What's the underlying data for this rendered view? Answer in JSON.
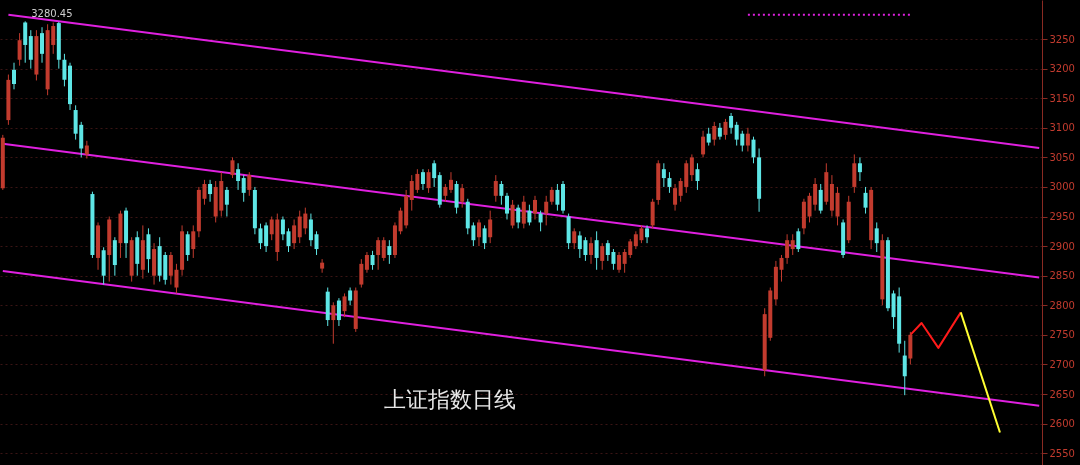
{
  "chart_data": {
    "type": "candlestick",
    "categories": [
      null,
      null,
      null,
      null,
      null,
      null,
      null,
      null,
      null,
      null,
      null,
      null,
      null,
      null,
      null,
      null,
      null,
      null,
      null,
      null,
      null,
      null,
      null,
      null,
      null,
      null,
      null,
      null,
      null,
      null,
      null,
      null,
      null,
      null,
      null,
      null,
      null,
      null,
      null,
      null,
      null,
      null,
      null,
      null,
      null,
      null,
      null,
      null,
      null,
      null,
      null,
      null,
      null,
      null,
      null,
      null,
      null,
      null,
      null,
      null,
      null,
      null,
      null,
      null,
      null,
      null,
      null,
      null,
      null,
      null,
      null,
      null,
      null,
      null,
      null,
      null,
      null,
      null,
      null,
      null,
      null,
      null,
      null,
      null,
      null,
      null,
      null,
      null,
      null,
      null,
      null,
      null,
      null,
      null,
      null,
      null,
      null,
      null,
      null,
      null,
      null,
      null,
      null,
      null,
      null,
      null,
      null,
      null,
      null,
      null,
      null,
      null,
      null,
      null,
      null,
      null,
      null,
      null,
      null,
      null,
      null,
      null,
      null,
      null,
      null,
      null,
      null,
      null,
      null,
      null,
      null,
      null,
      null,
      null,
      null,
      null,
      null,
      null,
      null,
      null,
      null,
      null,
      null,
      null,
      null,
      null,
      null,
      null,
      null,
      null,
      null,
      null,
      null,
      null,
      null,
      null,
      null,
      null,
      null,
      null,
      null,
      null,
      null,
      null,
      null,
      null,
      null,
      null,
      null,
      null,
      null,
      null,
      null,
      null,
      null,
      null,
      null,
      null,
      null,
      null,
      null,
      null,
      null,
      null,
      null,
      null
    ],
    "ohlc": [
      [
        2998,
        3088,
        2995,
        3083
      ],
      [
        3113,
        3190,
        3105,
        3181
      ],
      [
        3198,
        3210,
        3165,
        3174
      ],
      [
        3215,
        3260,
        3205,
        3248
      ],
      [
        3278,
        3280,
        3210,
        3240
      ],
      [
        3255,
        3265,
        3200,
        3215
      ],
      [
        3190,
        3265,
        3180,
        3255
      ],
      [
        3260,
        3270,
        3210,
        3225
      ],
      [
        3165,
        3275,
        3155,
        3265
      ],
      [
        3240,
        3278,
        3225,
        3272
      ],
      [
        3277,
        3279,
        3200,
        3215
      ],
      [
        3215,
        3225,
        3170,
        3181
      ],
      [
        3205,
        3210,
        3130,
        3140
      ],
      [
        3130,
        3138,
        3080,
        3090
      ],
      [
        3105,
        3110,
        3050,
        3065
      ],
      [
        3055,
        3078,
        3048,
        3070
      ],
      [
        2988,
        2992,
        2880,
        2885
      ],
      [
        2880,
        2940,
        2860,
        2935
      ],
      [
        2893,
        2898,
        2835,
        2850
      ],
      [
        2885,
        2950,
        2840,
        2945
      ],
      [
        2910,
        2915,
        2850,
        2868
      ],
      [
        2905,
        2960,
        2880,
        2955
      ],
      [
        2960,
        2965,
        2880,
        2905
      ],
      [
        2850,
        2915,
        2840,
        2910
      ],
      [
        2915,
        2925,
        2850,
        2870
      ],
      [
        2860,
        2935,
        2845,
        2910
      ],
      [
        2920,
        2930,
        2855,
        2878
      ],
      [
        2850,
        2905,
        2835,
        2895
      ],
      [
        2900,
        2915,
        2840,
        2850
      ],
      [
        2885,
        2890,
        2835,
        2843
      ],
      [
        2850,
        2890,
        2835,
        2885
      ],
      [
        2830,
        2870,
        2820,
        2860
      ],
      [
        2860,
        2935,
        2850,
        2925
      ],
      [
        2920,
        2925,
        2875,
        2885
      ],
      [
        2895,
        2935,
        2880,
        2925
      ],
      [
        2925,
        3000,
        2915,
        2995
      ],
      [
        2980,
        3012,
        2970,
        3005
      ],
      [
        3005,
        3012,
        2975,
        2988
      ],
      [
        2950,
        3010,
        2940,
        3000
      ],
      [
        2960,
        3025,
        2950,
        3010
      ],
      [
        2995,
        3000,
        2950,
        2970
      ],
      [
        3020,
        3050,
        3015,
        3045
      ],
      [
        3030,
        3040,
        2995,
        3010
      ],
      [
        3015,
        3020,
        2975,
        2990
      ],
      [
        2995,
        3025,
        2985,
        3020
      ],
      [
        2995,
        3000,
        2920,
        2930
      ],
      [
        2930,
        2938,
        2895,
        2905
      ],
      [
        2935,
        2940,
        2890,
        2900
      ],
      [
        2920,
        2950,
        2910,
        2945
      ],
      [
        2890,
        2955,
        2875,
        2945
      ],
      [
        2945,
        2950,
        2910,
        2920
      ],
      [
        2925,
        2930,
        2890,
        2900
      ],
      [
        2905,
        2945,
        2895,
        2935
      ],
      [
        2915,
        2960,
        2905,
        2950
      ],
      [
        2930,
        2965,
        2920,
        2955
      ],
      [
        2945,
        2955,
        2900,
        2910
      ],
      [
        2920,
        2925,
        2885,
        2895
      ],
      [
        2862,
        2878,
        2855,
        2872
      ],
      [
        2823,
        2830,
        2765,
        2775
      ],
      [
        2775,
        2805,
        2735,
        2800
      ],
      [
        2808,
        2812,
        2765,
        2775
      ],
      [
        2790,
        2820,
        2780,
        2815
      ],
      [
        2825,
        2830,
        2800,
        2808
      ],
      [
        2760,
        2830,
        2755,
        2825
      ],
      [
        2835,
        2878,
        2830,
        2870
      ],
      [
        2860,
        2890,
        2855,
        2885
      ],
      [
        2885,
        2892,
        2860,
        2868
      ],
      [
        2885,
        2915,
        2860,
        2910
      ],
      [
        2880,
        2915,
        2875,
        2910
      ],
      [
        2900,
        2910,
        2870,
        2885
      ],
      [
        2885,
        2940,
        2880,
        2935
      ],
      [
        2925,
        2965,
        2920,
        2960
      ],
      [
        2935,
        2995,
        2930,
        2985
      ],
      [
        2978,
        3020,
        2960,
        3010
      ],
      [
        2995,
        3030,
        2990,
        3022
      ],
      [
        3025,
        3030,
        2995,
        3005
      ],
      [
        2998,
        3030,
        2990,
        3025
      ],
      [
        3040,
        3045,
        3000,
        3015
      ],
      [
        3020,
        3025,
        2965,
        2970
      ],
      [
        2985,
        3005,
        2975,
        3000
      ],
      [
        2995,
        3025,
        2990,
        3012
      ],
      [
        3005,
        3010,
        2955,
        2965
      ],
      [
        2975,
        3005,
        2965,
        2998
      ],
      [
        2975,
        2980,
        2920,
        2930
      ],
      [
        2935,
        2940,
        2900,
        2910
      ],
      [
        2915,
        2945,
        2900,
        2940
      ],
      [
        2930,
        2935,
        2895,
        2905
      ],
      [
        2915,
        2960,
        2905,
        2945
      ],
      [
        2985,
        3020,
        2975,
        3010
      ],
      [
        3005,
        3010,
        2970,
        2985
      ],
      [
        2985,
        2990,
        2945,
        2955
      ],
      [
        2935,
        2978,
        2930,
        2970
      ],
      [
        2965,
        2970,
        2930,
        2940
      ],
      [
        2938,
        2985,
        2930,
        2975
      ],
      [
        2960,
        2970,
        2935,
        2940
      ],
      [
        2955,
        2985,
        2945,
        2978
      ],
      [
        2955,
        2960,
        2925,
        2940
      ],
      [
        2955,
        2985,
        2935,
        2975
      ],
      [
        2975,
        3000,
        2970,
        2995
      ],
      [
        2995,
        3005,
        2960,
        2970
      ],
      [
        3005,
        3010,
        2955,
        2960
      ],
      [
        2950,
        2955,
        2895,
        2905
      ],
      [
        2905,
        2930,
        2895,
        2925
      ],
      [
        2918,
        2925,
        2880,
        2895
      ],
      [
        2910,
        2915,
        2875,
        2885
      ],
      [
        2885,
        2915,
        2870,
        2905
      ],
      [
        2910,
        2925,
        2860,
        2880
      ],
      [
        2875,
        2905,
        2860,
        2900
      ],
      [
        2905,
        2910,
        2875,
        2885
      ],
      [
        2890,
        2895,
        2860,
        2870
      ],
      [
        2860,
        2890,
        2855,
        2885
      ],
      [
        2870,
        2895,
        2855,
        2890
      ],
      [
        2885,
        2912,
        2880,
        2908
      ],
      [
        2900,
        2925,
        2895,
        2920
      ],
      [
        2910,
        2935,
        2905,
        2930
      ],
      [
        2930,
        2935,
        2905,
        2915
      ],
      [
        2935,
        2980,
        2930,
        2975
      ],
      [
        2978,
        3045,
        2970,
        3040
      ],
      [
        3030,
        3040,
        3000,
        3015
      ],
      [
        3015,
        3025,
        2990,
        3000
      ],
      [
        2970,
        3005,
        2960,
        2998
      ],
      [
        2985,
        3015,
        2975,
        3010
      ],
      [
        3000,
        3045,
        2990,
        3040
      ],
      [
        3020,
        3055,
        3010,
        3050
      ],
      [
        3030,
        3040,
        2995,
        3010
      ],
      [
        3055,
        3095,
        3050,
        3085
      ],
      [
        3090,
        3100,
        3070,
        3075
      ],
      [
        3080,
        3110,
        3070,
        3103
      ],
      [
        3100,
        3108,
        3080,
        3085
      ],
      [
        3088,
        3115,
        3080,
        3110
      ],
      [
        3120,
        3125,
        3090,
        3100
      ],
      [
        3105,
        3110,
        3070,
        3080
      ],
      [
        3090,
        3095,
        3060,
        3070
      ],
      [
        3070,
        3100,
        3060,
        3090
      ],
      [
        3080,
        3085,
        3040,
        3050
      ],
      [
        3050,
        3065,
        2958,
        2980
      ],
      [
        2690,
        2795,
        2680,
        2785
      ],
      [
        2745,
        2830,
        2740,
        2825
      ],
      [
        2810,
        2875,
        2800,
        2865
      ],
      [
        2860,
        2885,
        2840,
        2880
      ],
      [
        2880,
        2920,
        2870,
        2910
      ],
      [
        2895,
        2920,
        2885,
        2910
      ],
      [
        2925,
        2930,
        2890,
        2895
      ],
      [
        2930,
        2980,
        2920,
        2975
      ],
      [
        2950,
        2990,
        2940,
        2985
      ],
      [
        2970,
        3015,
        2960,
        3005
      ],
      [
        2995,
        3005,
        2955,
        2960
      ],
      [
        2975,
        3040,
        2970,
        3025
      ],
      [
        2960,
        3020,
        2950,
        3005
      ],
      [
        2950,
        3000,
        2935,
        2990
      ],
      [
        2940,
        2945,
        2880,
        2885
      ],
      [
        2910,
        2985,
        2905,
        2975
      ],
      [
        3000,
        3055,
        2990,
        3040
      ],
      [
        3040,
        3050,
        3010,
        3025
      ],
      [
        2990,
        3000,
        2955,
        2965
      ],
      [
        2910,
        3000,
        2895,
        2995
      ],
      [
        2930,
        2940,
        2890,
        2905
      ],
      [
        2810,
        2920,
        2800,
        2910
      ],
      [
        2910,
        2915,
        2790,
        2795
      ],
      [
        2820,
        2825,
        2760,
        2780
      ],
      [
        2815,
        2830,
        2720,
        2735
      ],
      [
        2715,
        2740,
        2648,
        2680
      ],
      [
        2710,
        2755,
        2700,
        2750
      ],
      null,
      null,
      null,
      null,
      null,
      null,
      null,
      null,
      null,
      null,
      null,
      null,
      null,
      null,
      null,
      null,
      null,
      null,
      null,
      null,
      null,
      null,
      null
    ],
    "colors": [
      "#c23b2e",
      "#c23b2e",
      "#5ee6e6",
      "#c23b2e",
      "#5ee6e6",
      "#5ee6e6",
      "#c23b2e",
      "#5ee6e6",
      "#c23b2e",
      "#c23b2e",
      "#5ee6e6",
      "#5ee6e6",
      "#5ee6e6",
      "#5ee6e6",
      "#5ee6e6",
      "#c23b2e",
      "#5ee6e6",
      "#c23b2e",
      "#5ee6e6",
      "#c23b2e",
      "#5ee6e6",
      "#c23b2e",
      "#5ee6e6",
      "#c23b2e",
      "#5ee6e6",
      "#c23b2e",
      "#5ee6e6",
      "#c23b2e",
      "#5ee6e6",
      "#5ee6e6",
      "#c23b2e",
      "#c23b2e",
      "#c23b2e",
      "#5ee6e6",
      "#c23b2e",
      "#c23b2e",
      "#c23b2e",
      "#5ee6e6",
      "#c23b2e",
      "#c23b2e",
      "#5ee6e6",
      "#c23b2e",
      "#5ee6e6",
      "#5ee6e6",
      "#c23b2e",
      "#5ee6e6",
      "#5ee6e6",
      "#5ee6e6",
      "#c23b2e",
      "#c23b2e",
      "#5ee6e6",
      "#5ee6e6",
      "#c23b2e",
      "#c23b2e",
      "#c23b2e",
      "#5ee6e6",
      "#5ee6e6",
      "#c23b2e",
      "#5ee6e6",
      "#c23b2e",
      "#5ee6e6",
      "#c23b2e",
      "#5ee6e6",
      "#c23b2e",
      "#c23b2e",
      "#c23b2e",
      "#5ee6e6",
      "#c23b2e",
      "#c23b2e",
      "#5ee6e6",
      "#c23b2e",
      "#c23b2e",
      "#c23b2e",
      "#c23b2e",
      "#c23b2e",
      "#5ee6e6",
      "#c23b2e",
      "#5ee6e6",
      "#5ee6e6",
      "#c23b2e",
      "#c23b2e",
      "#5ee6e6",
      "#c23b2e",
      "#5ee6e6",
      "#5ee6e6",
      "#c23b2e",
      "#5ee6e6",
      "#c23b2e",
      "#c23b2e",
      "#5ee6e6",
      "#5ee6e6",
      "#c23b2e",
      "#5ee6e6",
      "#c23b2e",
      "#5ee6e6",
      "#c23b2e",
      "#5ee6e6",
      "#c23b2e",
      "#c23b2e",
      "#5ee6e6",
      "#5ee6e6",
      "#5ee6e6",
      "#c23b2e",
      "#5ee6e6",
      "#5ee6e6",
      "#c23b2e",
      "#5ee6e6",
      "#c23b2e",
      "#5ee6e6",
      "#5ee6e6",
      "#c23b2e",
      "#c23b2e",
      "#c23b2e",
      "#c23b2e",
      "#c23b2e",
      "#5ee6e6",
      "#c23b2e",
      "#c23b2e",
      "#5ee6e6",
      "#5ee6e6",
      "#c23b2e",
      "#c23b2e",
      "#c23b2e",
      "#c23b2e",
      "#5ee6e6",
      "#c23b2e",
      "#5ee6e6",
      "#c23b2e",
      "#5ee6e6",
      "#c23b2e",
      "#5ee6e6",
      "#5ee6e6",
      "#5ee6e6",
      "#c23b2e",
      "#5ee6e6",
      "#5ee6e6",
      "#c23b2e",
      "#c23b2e",
      "#c23b2e",
      "#c23b2e",
      "#c23b2e",
      "#c23b2e",
      "#5ee6e6",
      "#c23b2e",
      "#c23b2e",
      "#c23b2e",
      "#5ee6e6",
      "#c23b2e",
      "#c23b2e",
      "#c23b2e",
      "#5ee6e6",
      "#c23b2e",
      "#c23b2e",
      "#5ee6e6",
      "#5ee6e6",
      "#c23b2e",
      "#5ee6e6",
      "#c23b2e",
      "#5ee6e6",
      "#5ee6e6",
      "#5ee6e6",
      "#5ee6e6",
      "#c23b2e",
      null,
      null,
      null,
      null,
      null,
      null,
      null,
      null,
      null,
      null,
      null,
      null,
      null,
      null,
      null,
      null,
      null,
      null,
      null,
      null,
      null,
      null,
      null
    ],
    "series": [
      {
        "type": "line",
        "color": "#e020e0",
        "line_style": "solid",
        "values": [
          null,
          3291,
          null,
          null,
          null,
          null,
          null,
          null,
          null,
          null,
          null,
          null,
          null,
          null,
          null,
          null,
          null,
          null,
          null,
          null,
          null,
          null,
          null,
          null,
          null,
          null,
          null,
          null,
          null,
          null,
          null,
          null,
          null,
          null,
          null,
          null,
          null,
          null,
          null,
          null,
          null,
          null,
          null,
          null,
          null,
          null,
          null,
          null,
          null,
          null,
          null,
          null,
          null,
          null,
          null,
          null,
          null,
          null,
          null,
          null,
          null,
          null,
          null,
          null,
          null,
          null,
          null,
          null,
          null,
          null,
          null,
          null,
          null,
          null,
          null,
          null,
          null,
          null,
          null,
          null,
          null,
          null,
          null,
          null,
          null,
          null,
          null,
          null,
          null,
          null,
          null,
          null,
          null,
          null,
          null,
          null,
          null,
          null,
          null,
          null,
          null,
          null,
          null,
          null,
          null,
          null,
          null,
          null,
          null,
          null,
          null,
          null,
          null,
          null,
          null,
          null,
          null,
          null,
          null,
          null,
          null,
          null,
          null,
          null,
          null,
          null,
          null,
          null,
          null,
          null,
          null,
          null,
          null,
          null,
          null,
          null,
          null,
          null,
          null,
          null,
          null,
          null,
          null,
          null,
          null,
          null,
          null,
          null,
          null,
          null,
          null,
          null,
          null,
          null,
          null,
          null,
          null,
          null,
          null,
          null,
          null,
          null,
          null,
          null,
          null,
          null,
          null,
          null,
          null,
          null,
          null,
          null,
          null,
          null,
          null,
          null,
          null,
          null,
          null,
          null,
          null,
          null,
          null,
          null,
          null,
          3066
        ]
      },
      {
        "type": "line",
        "color": "#e020e0",
        "line_style": "solid",
        "values": [
          3073,
          null,
          null,
          null,
          null,
          null,
          null,
          null,
          null,
          null,
          null,
          null,
          null,
          null,
          null,
          null,
          null,
          null,
          null,
          null,
          null,
          null,
          null,
          null,
          null,
          null,
          null,
          null,
          null,
          null,
          null,
          null,
          null,
          null,
          null,
          null,
          null,
          null,
          null,
          null,
          null,
          null,
          null,
          null,
          null,
          null,
          null,
          null,
          null,
          null,
          null,
          null,
          null,
          null,
          null,
          null,
          null,
          null,
          null,
          null,
          null,
          null,
          null,
          null,
          null,
          null,
          null,
          null,
          null,
          null,
          null,
          null,
          null,
          null,
          null,
          null,
          null,
          null,
          null,
          null,
          null,
          null,
          null,
          null,
          null,
          null,
          null,
          null,
          null,
          null,
          null,
          null,
          null,
          null,
          null,
          null,
          null,
          null,
          null,
          null,
          null,
          null,
          null,
          null,
          null,
          null,
          null,
          null,
          null,
          null,
          null,
          null,
          null,
          null,
          null,
          null,
          null,
          null,
          null,
          null,
          null,
          null,
          null,
          null,
          null,
          null,
          null,
          null,
          null,
          null,
          null,
          null,
          null,
          null,
          null,
          null,
          null,
          null,
          null,
          null,
          null,
          null,
          null,
          null,
          null,
          null,
          null,
          null,
          null,
          null,
          null,
          null,
          null,
          null,
          null,
          null,
          null,
          null,
          null,
          null,
          null,
          null,
          null,
          null,
          null,
          null,
          null,
          null,
          null,
          null,
          null,
          null,
          null,
          null,
          null,
          null,
          null,
          null,
          null,
          null,
          null,
          null,
          null,
          null,
          null,
          2847
        ]
      },
      {
        "type": "line",
        "color": "#e020e0",
        "line_style": "solid",
        "values": [
          2858,
          null,
          null,
          null,
          null,
          null,
          null,
          null,
          null,
          null,
          null,
          null,
          null,
          null,
          null,
          null,
          null,
          null,
          null,
          null,
          null,
          null,
          null,
          null,
          null,
          null,
          null,
          null,
          null,
          null,
          null,
          null,
          null,
          null,
          null,
          null,
          null,
          null,
          null,
          null,
          null,
          null,
          null,
          null,
          null,
          null,
          null,
          null,
          null,
          null,
          null,
          null,
          null,
          null,
          null,
          null,
          null,
          null,
          null,
          null,
          null,
          null,
          null,
          null,
          null,
          null,
          null,
          null,
          null,
          null,
          null,
          null,
          null,
          null,
          null,
          null,
          null,
          null,
          null,
          null,
          null,
          null,
          null,
          null,
          null,
          null,
          null,
          null,
          null,
          null,
          null,
          null,
          null,
          null,
          null,
          null,
          null,
          null,
          null,
          null,
          null,
          null,
          null,
          null,
          null,
          null,
          null,
          null,
          null,
          null,
          null,
          null,
          null,
          null,
          null,
          null,
          null,
          null,
          null,
          null,
          null,
          null,
          null,
          null,
          null,
          null,
          null,
          null,
          null,
          null,
          null,
          null,
          null,
          null,
          null,
          null,
          null,
          null,
          null,
          null,
          null,
          null,
          null,
          null,
          null,
          null,
          null,
          null,
          null,
          null,
          null,
          null,
          null,
          null,
          null,
          null,
          null,
          null,
          null,
          null,
          null,
          null,
          null,
          null,
          null,
          null,
          null,
          null,
          null,
          null,
          null,
          null,
          null,
          null,
          null,
          null,
          null,
          null,
          null,
          null,
          null,
          null,
          null,
          null,
          null,
          2630
        ]
      },
      {
        "type": "line",
        "color": "#e020e0",
        "line_style": "dotted",
        "values": [
          null,
          null,
          null,
          null,
          null,
          null,
          null,
          null,
          null,
          null,
          null,
          null,
          null,
          null,
          null,
          null,
          null,
          null,
          null,
          null,
          null,
          null,
          null,
          null,
          null,
          null,
          null,
          null,
          null,
          null,
          null,
          null,
          null,
          null,
          null,
          null,
          null,
          null,
          null,
          null,
          null,
          null,
          null,
          null,
          null,
          null,
          null,
          null,
          null,
          null,
          null,
          null,
          null,
          null,
          null,
          null,
          null,
          null,
          null,
          null,
          null,
          null,
          null,
          null,
          null,
          null,
          null,
          null,
          null,
          null,
          null,
          null,
          null,
          null,
          null,
          null,
          null,
          null,
          null,
          null,
          null,
          null,
          null,
          null,
          null,
          null,
          null,
          null,
          null,
          null,
          null,
          null,
          null,
          null,
          null,
          null,
          null,
          null,
          null,
          null,
          null,
          null,
          null,
          null,
          null,
          null,
          null,
          null,
          null,
          null,
          null,
          null,
          null,
          null,
          null,
          null,
          null,
          null,
          null,
          null,
          null,
          null,
          null,
          null,
          null,
          null,
          null,
          null,
          null,
          null,
          null,
          null,
          null,
          3291,
          null,
          null,
          null,
          null,
          null,
          null,
          null,
          null,
          null,
          null,
          null,
          null,
          null,
          null,
          null,
          null,
          null,
          null,
          null,
          null,
          null,
          null,
          null,
          null,
          null,
          null,
          null,
          null,
          3291,
          null,
          null,
          null,
          null,
          null,
          null,
          null,
          null,
          null,
          null,
          null,
          null,
          null,
          null,
          null,
          null,
          null,
          null,
          null,
          null,
          null,
          null,
          null
        ]
      },
      {
        "type": "line",
        "color": "#ff1a1a",
        "line_style": "solid",
        "values": [
          null,
          null,
          null,
          null,
          null,
          null,
          null,
          null,
          null,
          null,
          null,
          null,
          null,
          null,
          null,
          null,
          null,
          null,
          null,
          null,
          null,
          null,
          null,
          null,
          null,
          null,
          null,
          null,
          null,
          null,
          null,
          null,
          null,
          null,
          null,
          null,
          null,
          null,
          null,
          null,
          null,
          null,
          null,
          null,
          null,
          null,
          null,
          null,
          null,
          null,
          null,
          null,
          null,
          null,
          null,
          null,
          null,
          null,
          null,
          null,
          null,
          null,
          null,
          null,
          null,
          null,
          null,
          null,
          null,
          null,
          null,
          null,
          null,
          null,
          null,
          null,
          null,
          null,
          null,
          null,
          null,
          null,
          null,
          null,
          null,
          null,
          null,
          null,
          null,
          null,
          null,
          null,
          null,
          null,
          null,
          null,
          null,
          null,
          null,
          null,
          null,
          null,
          null,
          null,
          null,
          null,
          null,
          null,
          null,
          null,
          null,
          null,
          null,
          null,
          null,
          null,
          null,
          null,
          null,
          null,
          null,
          null,
          null,
          null,
          null,
          null,
          null,
          null,
          null,
          null,
          null,
          null,
          null,
          null,
          null,
          null,
          null,
          null,
          null,
          null,
          null,
          null,
          null,
          null,
          null,
          null,
          null,
          null,
          null,
          null,
          null,
          null,
          null,
          null,
          null,
          null,
          null,
          null,
          null,
          null,
          null,
          null,
          2750,
          null,
          2770,
          null,
          null,
          2728,
          null,
          null,
          null,
          2788,
          null,
          null,
          null,
          null,
          null,
          null,
          null,
          null,
          null,
          null,
          null,
          null,
          null,
          null
        ]
      },
      {
        "type": "line",
        "color": "#ffff33",
        "line_style": "solid",
        "values": [
          null,
          null,
          null,
          null,
          null,
          null,
          null,
          null,
          null,
          null,
          null,
          null,
          null,
          null,
          null,
          null,
          null,
          null,
          null,
          null,
          null,
          null,
          null,
          null,
          null,
          null,
          null,
          null,
          null,
          null,
          null,
          null,
          null,
          null,
          null,
          null,
          null,
          null,
          null,
          null,
          null,
          null,
          null,
          null,
          null,
          null,
          null,
          null,
          null,
          null,
          null,
          null,
          null,
          null,
          null,
          null,
          null,
          null,
          null,
          null,
          null,
          null,
          null,
          null,
          null,
          null,
          null,
          null,
          null,
          null,
          null,
          null,
          null,
          null,
          null,
          null,
          null,
          null,
          null,
          null,
          null,
          null,
          null,
          null,
          null,
          null,
          null,
          null,
          null,
          null,
          null,
          null,
          null,
          null,
          null,
          null,
          null,
          null,
          null,
          null,
          null,
          null,
          null,
          null,
          null,
          null,
          null,
          null,
          null,
          null,
          null,
          null,
          null,
          null,
          null,
          null,
          null,
          null,
          null,
          null,
          null,
          null,
          null,
          null,
          null,
          null,
          null,
          null,
          null,
          null,
          null,
          null,
          null,
          null,
          null,
          null,
          null,
          null,
          null,
          null,
          null,
          null,
          null,
          null,
          null,
          null,
          null,
          null,
          null,
          null,
          null,
          null,
          null,
          null,
          null,
          null,
          null,
          null,
          null,
          null,
          null,
          null,
          null,
          null,
          null,
          null,
          null,
          null,
          null,
          null,
          null,
          2788,
          null,
          null,
          null,
          null,
          null,
          null,
          2585,
          null,
          null,
          null,
          null,
          null,
          null,
          null
        ]
      }
    ],
    "ylim": [
      2530,
      3316
    ],
    "yticks": [
      2550,
      2600,
      2650,
      2700,
      2750,
      2800,
      2850,
      2900,
      2950,
      3000,
      3050,
      3100,
      3150,
      3200,
      3250
    ],
    "grid": "y",
    "marker": "none",
    "annotations": [
      {
        "text": "3280.45",
        "y": 3280
      },
      "上证指数日线"
    ]
  }
}
